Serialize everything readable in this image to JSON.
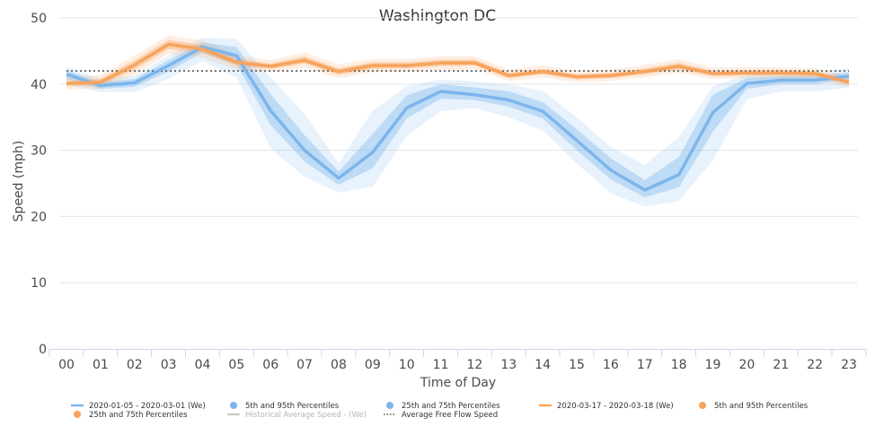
{
  "chart_data": {
    "type": "line",
    "title": "Washington DC",
    "xlabel": "Time of Day",
    "ylabel": "Speed (mph)",
    "ylim": [
      0,
      50
    ],
    "yticks": [
      0,
      10,
      20,
      30,
      40,
      50
    ],
    "categories": [
      "00",
      "01",
      "02",
      "03",
      "04",
      "05",
      "06",
      "07",
      "08",
      "09",
      "10",
      "11",
      "12",
      "13",
      "14",
      "15",
      "16",
      "17",
      "18",
      "19",
      "20",
      "21",
      "22",
      "23"
    ],
    "grid": true,
    "legend_position": "bottom",
    "reference_line": {
      "name": "Average Free Flow Speed",
      "value": 42,
      "color": "#555555"
    },
    "series": [
      {
        "name": "2020-01-05 - 2020-03-01 (We)",
        "color": "#7cb5ec",
        "values": [
          41.5,
          39.8,
          40.2,
          42.8,
          45.6,
          44.3,
          36.0,
          30.0,
          25.8,
          29.7,
          36.4,
          38.9,
          38.4,
          37.6,
          35.9,
          31.5,
          27.0,
          24.0,
          26.3,
          35.7,
          40.1,
          40.6,
          40.6,
          41.2
        ],
        "band_outer": {
          "name": "5th and 95th Percentiles",
          "low": [
            40.0,
            38.8,
            38.8,
            40.8,
            43.5,
            41.0,
            30.3,
            26.0,
            23.6,
            24.5,
            32.2,
            35.9,
            36.4,
            35.0,
            33.0,
            28.0,
            23.5,
            21.5,
            22.3,
            28.5,
            37.7,
            38.9,
            38.9,
            39.5
          ],
          "high": [
            42.6,
            40.8,
            41.3,
            44.3,
            47.0,
            46.8,
            41.0,
            35.5,
            28.0,
            36.0,
            39.7,
            40.7,
            40.4,
            39.9,
            39.0,
            35.0,
            30.5,
            27.8,
            32.0,
            39.7,
            41.4,
            41.6,
            41.7,
            42.4
          ]
        },
        "band_inner": {
          "name": "25th and 75th Percentiles",
          "low": [
            40.8,
            39.3,
            39.6,
            41.9,
            44.8,
            43.0,
            33.8,
            28.3,
            24.8,
            27.3,
            34.8,
            37.8,
            37.6,
            36.6,
            34.8,
            30.0,
            25.6,
            22.9,
            24.4,
            32.8,
            39.3,
            40.0,
            40.0,
            40.7
          ],
          "high": [
            42.1,
            40.3,
            40.8,
            43.6,
            46.3,
            45.6,
            38.5,
            32.3,
            26.8,
            32.5,
            38.3,
            40.0,
            39.5,
            38.9,
            37.3,
            33.2,
            28.8,
            25.5,
            29.0,
            38.4,
            40.9,
            41.2,
            41.2,
            41.8
          ]
        }
      },
      {
        "name": "2020-03-17 - 2020-03-18 (We)",
        "color": "#f7a35c",
        "values": [
          40.1,
          40.3,
          42.9,
          46.0,
          45.3,
          43.3,
          42.7,
          43.6,
          41.9,
          42.8,
          42.8,
          43.2,
          43.2,
          41.3,
          41.9,
          41.1,
          41.3,
          41.9,
          42.7,
          41.6,
          41.7,
          41.7,
          41.6,
          40.3
        ],
        "band_outer": {
          "name": "5th and 95th Percentiles",
          "low": [
            39.2,
            39.3,
            41.4,
            44.6,
            44.0,
            42.2,
            41.8,
            42.5,
            40.9,
            41.8,
            41.9,
            42.2,
            42.3,
            40.5,
            41.0,
            40.3,
            40.5,
            41.0,
            41.7,
            40.8,
            40.9,
            40.9,
            40.8,
            39.5
          ],
          "high": [
            41.0,
            41.4,
            44.3,
            47.4,
            46.6,
            44.4,
            43.6,
            44.8,
            43.0,
            43.8,
            43.8,
            44.2,
            44.2,
            42.2,
            42.8,
            42.0,
            42.2,
            42.9,
            43.8,
            42.5,
            42.6,
            42.5,
            42.4,
            41.2
          ]
        },
        "band_inner": {
          "name": "25th and 75th Percentiles",
          "low": [
            39.7,
            39.8,
            42.2,
            45.3,
            44.7,
            42.8,
            42.3,
            43.1,
            41.4,
            42.3,
            42.4,
            42.7,
            42.8,
            40.9,
            41.5,
            40.7,
            40.9,
            41.5,
            42.2,
            41.2,
            41.3,
            41.3,
            41.2,
            39.9
          ],
          "high": [
            40.5,
            40.8,
            43.6,
            46.7,
            45.9,
            43.8,
            43.1,
            44.2,
            42.4,
            43.3,
            43.3,
            43.7,
            43.7,
            41.7,
            42.3,
            41.5,
            41.7,
            42.4,
            43.2,
            42.0,
            42.1,
            42.1,
            42.0,
            40.7
          ]
        }
      }
    ],
    "legend": [
      {
        "label": "2020-01-05 - 2020-03-01 (We)",
        "symbol": "line",
        "color": "#7cb5ec",
        "muted": false
      },
      {
        "label": "5th and 95th Percentiles",
        "symbol": "dot",
        "color": "#7cb5ec",
        "muted": false
      },
      {
        "label": "25th and 75th Percentiles",
        "symbol": "dot",
        "color": "#7cb5ec",
        "muted": false
      },
      {
        "label": "2020-03-17 - 2020-03-18 (We)",
        "symbol": "line",
        "color": "#f7a35c",
        "muted": false
      },
      {
        "label": "5th and 95th Percentiles",
        "symbol": "dot",
        "color": "#f7a35c",
        "muted": false
      },
      {
        "label": "25th and 75th Percentiles",
        "symbol": "dot",
        "color": "#f7a35c",
        "muted": false
      },
      {
        "label": "Historical Average Speed - (We)",
        "symbol": "line",
        "color": "#cccccc",
        "muted": true
      },
      {
        "label": "Average Free Flow Speed",
        "symbol": "dotted",
        "color": "#555555",
        "muted": false
      }
    ]
  }
}
